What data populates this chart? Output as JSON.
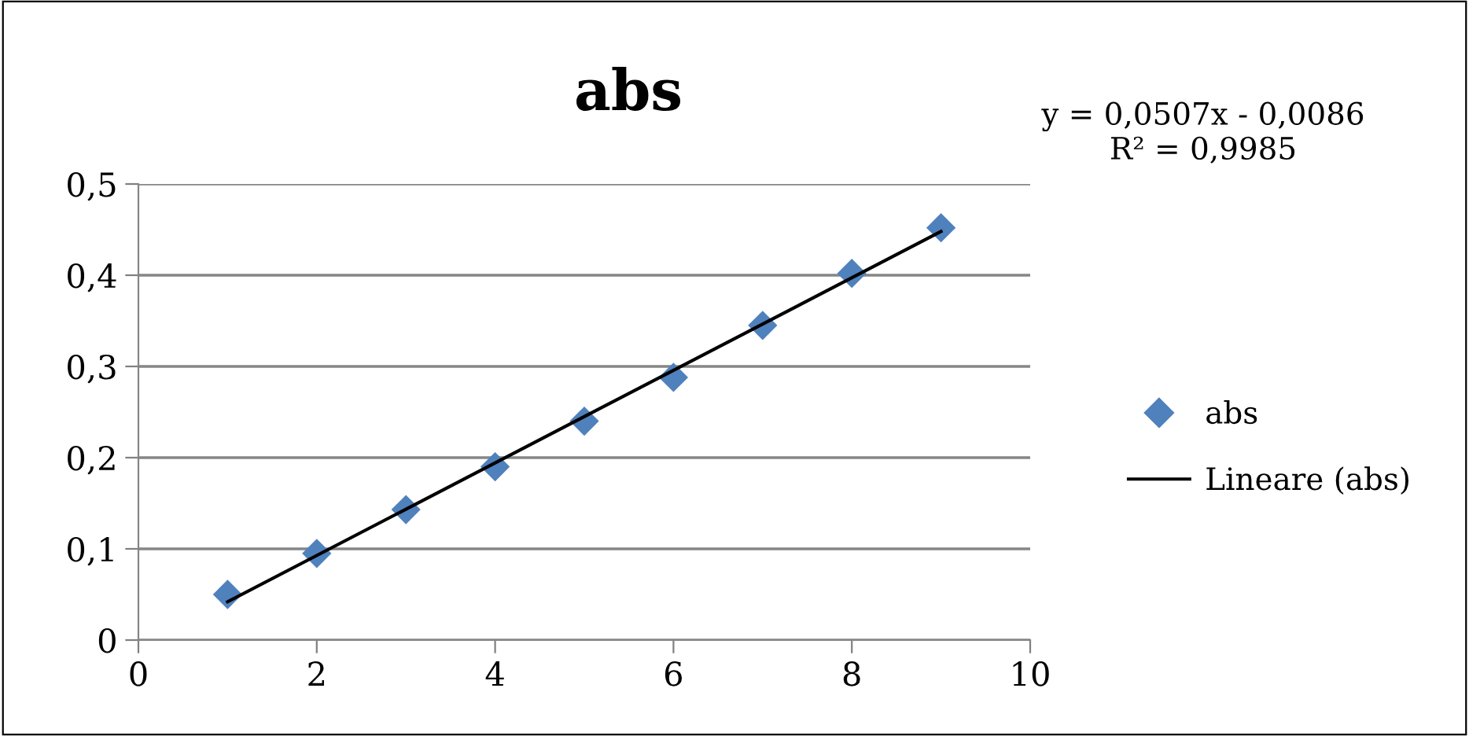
{
  "chart_data": {
    "type": "scatter",
    "title": "abs",
    "x": [
      1,
      2,
      3,
      4,
      5,
      6,
      7,
      8,
      9
    ],
    "series": [
      {
        "name": "abs",
        "color": "#4f81bd",
        "marker": "diamond",
        "values": [
          0.05,
          0.095,
          0.143,
          0.19,
          0.24,
          0.288,
          0.345,
          0.402,
          0.452
        ]
      },
      {
        "name": "Lineare (abs)",
        "type": "line",
        "color": "#000000",
        "x": [
          1,
          9
        ],
        "values": [
          0.042,
          0.448
        ],
        "line_style": "solid",
        "marker": "none"
      }
    ],
    "annotations": [
      "y = 0,0507x - 0,0086\nR² = 0,9985"
    ],
    "xlim": [
      0,
      10
    ],
    "xticks": [
      {
        "value": 0,
        "label": "0"
      },
      {
        "value": 2,
        "label": "2"
      },
      {
        "value": 4,
        "label": "4"
      },
      {
        "value": 6,
        "label": "6"
      },
      {
        "value": 8,
        "label": "8"
      },
      {
        "value": 10,
        "label": "10"
      }
    ],
    "ylim": [
      0,
      0.5
    ],
    "yticks": [
      {
        "value": 0,
        "label": "0"
      },
      {
        "value": 0.1,
        "label": "0,1"
      },
      {
        "value": 0.2,
        "label": "0,2"
      },
      {
        "value": 0.3,
        "label": "0,3"
      },
      {
        "value": 0.4,
        "label": "0,4"
      },
      {
        "value": 0.5,
        "label": "0,5"
      }
    ],
    "grid": "y",
    "legend": "right"
  }
}
